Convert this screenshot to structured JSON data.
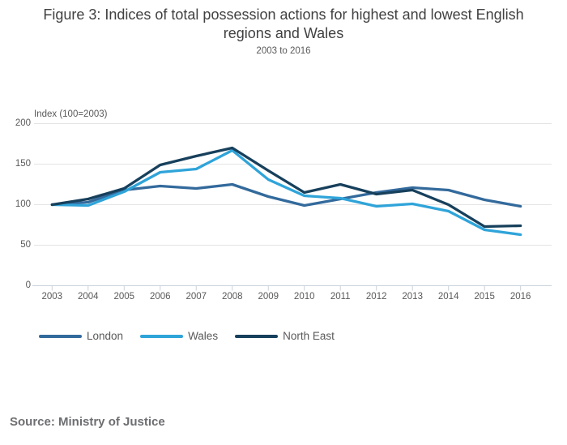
{
  "header": {
    "title": "Figure 3: Indices of total possession actions for highest and lowest English regions and Wales",
    "subtitle": "2003 to 2016"
  },
  "footer": {
    "source": "Source: Ministry of Justice"
  },
  "colors": {
    "london": "#336a9c",
    "wales": "#2fa4d9",
    "north_east": "#17405c",
    "gridline": "#e4e4e4",
    "axis_line": "#c9d2da",
    "tick_label": "#595959"
  },
  "chart_data": {
    "type": "line",
    "title": "Figure 3: Indices of total possession actions for highest and lowest English regions and Wales",
    "subtitle": "2003 to 2016",
    "ylabel": "Index (100=2003)",
    "xlabel": "",
    "x": [
      2003,
      2004,
      2005,
      2006,
      2007,
      2008,
      2009,
      2010,
      2011,
      2012,
      2013,
      2014,
      2015,
      2016
    ],
    "x_tick_labels": [
      "2003",
      "2004",
      "2005",
      "2006",
      "2007",
      "2008",
      "2009",
      "2010",
      "2011",
      "2012",
      "2013",
      "2014",
      "2015",
      "2016"
    ],
    "y_tick_labels": [
      "0",
      "50",
      "100",
      "150",
      "200"
    ],
    "yticks": [
      0,
      50,
      100,
      150,
      200
    ],
    "ylim": [
      0,
      200
    ],
    "grid": true,
    "legend_position": "bottom",
    "series": [
      {
        "name": "London",
        "color": "#336a9c",
        "values": [
          100,
          103,
          118,
          123,
          120,
          125,
          110,
          99,
          107,
          115,
          121,
          118,
          106,
          98
        ]
      },
      {
        "name": "Wales",
        "color": "#2fa4d9",
        "values": [
          100,
          99,
          116,
          140,
          144,
          167,
          131,
          111,
          108,
          98,
          101,
          92,
          69,
          63
        ]
      },
      {
        "name": "North East",
        "color": "#17405c",
        "values": [
          100,
          107,
          120,
          149,
          160,
          170,
          142,
          115,
          125,
          113,
          118,
          100,
          73,
          74
        ]
      }
    ]
  }
}
